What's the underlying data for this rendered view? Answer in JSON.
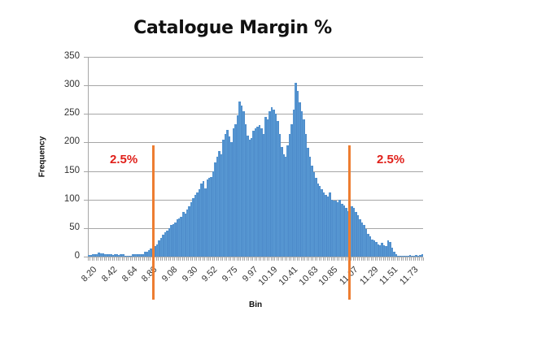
{
  "chart_data": {
    "type": "bar",
    "subtype": "histogram",
    "title": "Catalogue Margin %",
    "xlabel": "Bin",
    "ylabel": "Frequency",
    "ylim": [
      0,
      350
    ],
    "yticks": [
      0,
      50,
      100,
      150,
      200,
      250,
      300,
      350
    ],
    "grid": true,
    "legend": "none",
    "bin_start": 8.2,
    "bin_width": 0.022,
    "xtick_labels": [
      "8.20",
      "8.42",
      "8.64",
      "8.86",
      "9.08",
      "9.30",
      "9.52",
      "9.75",
      "9.97",
      "10.19",
      "10.41",
      "10.63",
      "10.85",
      "11.07",
      "11.29",
      "11.51",
      "11.73"
    ],
    "values": [
      3,
      3,
      4,
      4,
      5,
      7,
      6,
      6,
      5,
      5,
      4,
      4,
      3,
      5,
      5,
      3,
      4,
      5,
      2,
      1,
      2,
      2,
      4,
      4,
      5,
      5,
      4,
      4,
      8,
      9,
      12,
      14,
      15,
      18,
      22,
      28,
      33,
      38,
      42,
      45,
      50,
      55,
      57,
      60,
      65,
      67,
      70,
      78,
      75,
      82,
      88,
      95,
      103,
      108,
      112,
      118,
      128,
      132,
      120,
      135,
      138,
      140,
      150,
      165,
      175,
      185,
      180,
      205,
      215,
      222,
      210,
      200,
      225,
      232,
      248,
      272,
      265,
      255,
      232,
      212,
      205,
      208,
      220,
      225,
      228,
      230,
      225,
      215,
      245,
      240,
      255,
      262,
      258,
      250,
      238,
      215,
      192,
      180,
      175,
      195,
      215,
      232,
      258,
      305,
      290,
      270,
      255,
      240,
      215,
      190,
      175,
      160,
      148,
      138,
      128,
      124,
      118,
      112,
      108,
      105,
      112,
      100,
      98,
      98,
      96,
      100,
      92,
      90,
      86,
      80,
      92,
      88,
      85,
      78,
      72,
      65,
      60,
      55,
      48,
      40,
      35,
      30,
      28,
      25,
      22,
      20,
      24,
      20,
      18,
      28,
      25,
      15,
      8,
      5,
      2,
      2,
      1,
      2,
      2,
      2,
      3,
      2,
      2,
      3,
      2,
      3,
      4
    ],
    "annotations": [
      {
        "type": "vline",
        "x": 8.91,
        "color": "#ed7d31",
        "label": "2.5%",
        "label_side": "left"
      },
      {
        "type": "vline",
        "x": 11.08,
        "color": "#ed7d31",
        "label": "2.5%",
        "label_side": "right"
      }
    ],
    "bar_color": "#5b9bd5"
  },
  "labels": {
    "title": "Catalogue Margin %",
    "xlabel": "Bin",
    "ylabel": "Frequency",
    "left_pct": "2.5%",
    "right_pct": "2.5%"
  }
}
